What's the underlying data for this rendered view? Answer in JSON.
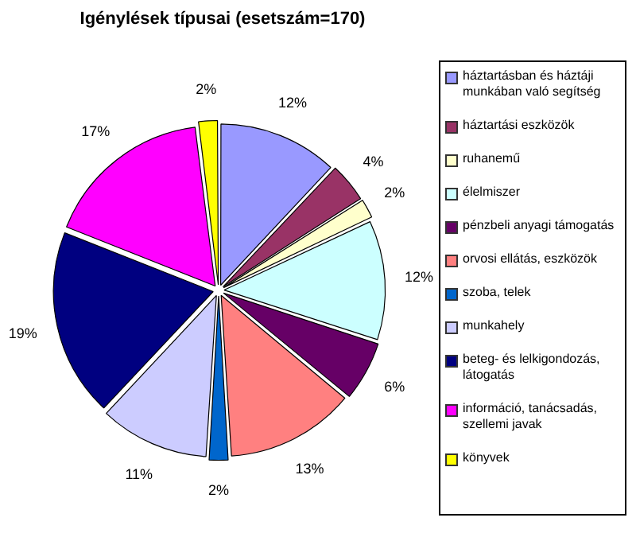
{
  "chart_data": {
    "type": "pie",
    "title": "Igénylések típusai (esetszám=170)",
    "categories": [
      "háztartásban és háztáji munkában  való segítség",
      "háztartási eszközök",
      "ruhanemű",
      "élelmiszer",
      "pénzbeli anyagi támogatás",
      "orvosi ellátás, eszközök",
      "szoba, telek",
      "munkahely",
      "beteg- és lelkigondozás, látogatás",
      "információ, tanácsadás, szellemi javak",
      "könyvek"
    ],
    "values": [
      12,
      4,
      2,
      12,
      6,
      13,
      2,
      11,
      19,
      17,
      2
    ],
    "value_labels": [
      "12%",
      "4%",
      "2%",
      "12%",
      "6%",
      "13%",
      "2%",
      "11%",
      "19%",
      "17%",
      "2%"
    ],
    "colors": [
      "#9999ff",
      "#993366",
      "#ffffcc",
      "#ccffff",
      "#660066",
      "#ff8080",
      "#0066cc",
      "#ccccff",
      "#000080",
      "#ff00ff",
      "#ffff00"
    ],
    "legend": "right"
  }
}
